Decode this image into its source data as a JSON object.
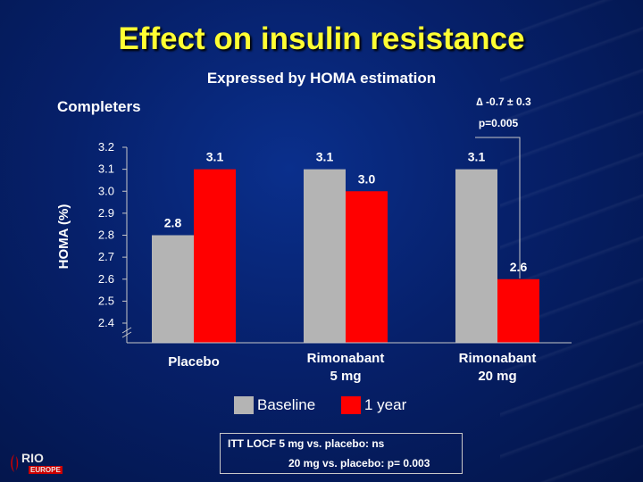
{
  "slide": {
    "title": "Effect on insulin resistance",
    "subtitle": "Expressed by HOMA estimation",
    "completers_label": "Completers"
  },
  "annotation": {
    "delta": "∆ -0.7 ± 0.3",
    "p_value": "p=0.005"
  },
  "legend": {
    "baseline": "Baseline",
    "one_year": "1 year"
  },
  "footnote": {
    "line1": "ITT LOCF   5 mg vs. placebo: ns",
    "line2": "20 mg vs. placebo: p= 0.003"
  },
  "logo": {
    "name": "RIO",
    "region": "EUROPE"
  },
  "colors": {
    "title": "#ffff33",
    "baseline": "#b4b4b4",
    "one_year": "#ff0000"
  },
  "chart_data": {
    "type": "bar",
    "categories": [
      "Placebo",
      "Rimonabant\n5 mg",
      "Rimonabant\n20 mg"
    ],
    "series": [
      {
        "name": "Baseline",
        "values": [
          2.8,
          3.1,
          3.1
        ]
      },
      {
        "name": "1 year",
        "values": [
          3.1,
          3.0,
          2.6
        ]
      }
    ],
    "data_labels": [
      [
        "2.8",
        "3.1",
        "3.1"
      ],
      [
        "3.1",
        "3.0",
        "2.6"
      ]
    ],
    "ylabel": "HOMA (%)",
    "ylim": [
      2.4,
      3.2
    ],
    "y_ticks": [
      "2.4",
      "2.5",
      "2.6",
      "2.7",
      "2.8",
      "2.9",
      "3.0",
      "3.1",
      "3.2"
    ],
    "y_axis_break": true,
    "grid": false,
    "legend_position": "bottom-center"
  }
}
